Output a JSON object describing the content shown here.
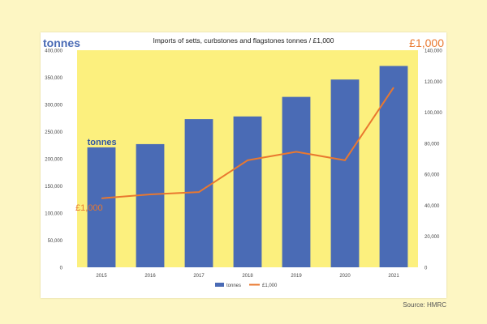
{
  "source": "Source: HMRC",
  "chart_data": {
    "type": "bar",
    "title": "Imports of setts, curbstones and flagstones   tonnes / £1,000",
    "categories": [
      "2015",
      "2016",
      "2017",
      "2018",
      "2019",
      "2020",
      "2021"
    ],
    "series": [
      {
        "name": "tonnes",
        "type": "bar",
        "axis": "left",
        "color": "#4a6bb5",
        "values": [
          221000,
          227000,
          273000,
          278000,
          314000,
          346000,
          371000
        ]
      },
      {
        "name": "£1,000",
        "type": "line",
        "axis": "right",
        "color": "#e9782f",
        "values": [
          44500,
          47000,
          48500,
          69000,
          74500,
          69000,
          116000
        ]
      }
    ],
    "y_left": {
      "label": "tonnes",
      "ylim": [
        0,
        400000
      ],
      "ticks": [
        "0",
        "50,000",
        "100,000",
        "150,000",
        "200,000",
        "250,000",
        "300,000",
        "350,000",
        "400,000"
      ]
    },
    "y_right": {
      "label": "£1,000",
      "ylim": [
        0,
        140000
      ],
      "ticks": [
        "0",
        "20,000",
        "40,000",
        "60,000",
        "80,000",
        "100,000",
        "120,000",
        "140,000"
      ]
    },
    "annotations": [
      {
        "text": "tonnes",
        "color": "#2f55a4",
        "near_series": 0,
        "near_index": 0
      },
      {
        "text": "£1,000",
        "color": "#e9782f",
        "near_series": 1,
        "near_index": 0
      }
    ],
    "plot_background": "#fcf07e",
    "legend_position": "bottom",
    "grid": false
  }
}
